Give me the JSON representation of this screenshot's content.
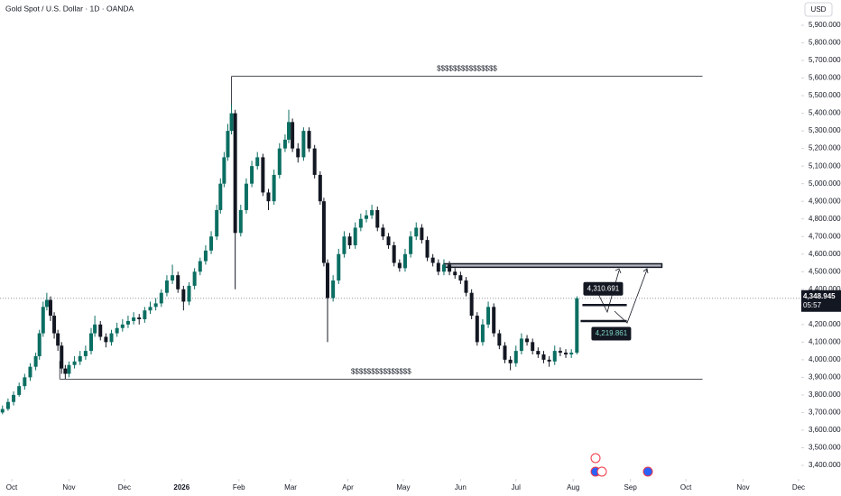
{
  "chart_data": {
    "type": "candlestick",
    "title": "Gold Spot / U.S. Dollar · 1D · OANDA",
    "currency": "USD",
    "up_color": "#0b6e62",
    "down_color": "#131722",
    "xlim": [
      -6.35,
      427.5
    ],
    "ylim": [
      3338.5,
      6043.4
    ],
    "xticks": [
      {
        "value": 0,
        "label": "Oct"
      },
      {
        "value": 31,
        "label": "Nov"
      },
      {
        "value": 61,
        "label": "Dec"
      },
      {
        "value": 92,
        "label": "2026"
      },
      {
        "value": 123,
        "label": "Feb"
      },
      {
        "value": 151,
        "label": "Mar"
      },
      {
        "value": 182,
        "label": "Apr"
      },
      {
        "value": 212,
        "label": "May"
      },
      {
        "value": 243,
        "label": "Jun"
      },
      {
        "value": 273,
        "label": "Jul"
      },
      {
        "value": 304,
        "label": "Aug"
      },
      {
        "value": 335,
        "label": "Sep"
      },
      {
        "value": 365,
        "label": "Oct"
      },
      {
        "value": 396,
        "label": "Nov"
      },
      {
        "value": 426,
        "label": "Dec"
      }
    ],
    "yticks": [
      {
        "value": 5900,
        "label": "5,900.000"
      },
      {
        "value": 5800,
        "label": "5,800.000"
      },
      {
        "value": 5700,
        "label": "5,700.000"
      },
      {
        "value": 5600,
        "label": "5,600.000"
      },
      {
        "value": 5500,
        "label": "5,500.000"
      },
      {
        "value": 5400,
        "label": "5,400.000"
      },
      {
        "value": 5300,
        "label": "5,300.000"
      },
      {
        "value": 5200,
        "label": "5,200.000"
      },
      {
        "value": 5100,
        "label": "5,100.000"
      },
      {
        "value": 5000,
        "label": "5,000.000"
      },
      {
        "value": 4900,
        "label": "4,900.000"
      },
      {
        "value": 4800,
        "label": "4,800.000"
      },
      {
        "value": 4700,
        "label": "4,700.000"
      },
      {
        "value": 4600,
        "label": "4,600.000"
      },
      {
        "value": 4500,
        "label": "4,500.000"
      },
      {
        "value": 4400,
        "label": "4,400.000"
      },
      {
        "value": 4200,
        "label": "4,200.000"
      },
      {
        "value": 4100,
        "label": "4,100.000"
      },
      {
        "value": 4000,
        "label": "4,000.000"
      },
      {
        "value": 3900,
        "label": "3,900.000"
      },
      {
        "value": 3800,
        "label": "3,800.000"
      },
      {
        "value": 3700,
        "label": "3,700.000"
      },
      {
        "value": 3600,
        "label": "3,600.000"
      },
      {
        "value": 3500,
        "label": "3,500.000"
      },
      {
        "value": 3400,
        "label": "3,400.000"
      }
    ],
    "x": [
      -5,
      -2,
      1,
      4,
      7,
      10,
      13,
      15,
      17,
      19,
      21,
      23,
      25,
      27,
      29,
      31,
      34,
      37,
      40,
      43,
      45,
      48,
      51,
      54,
      57,
      60,
      63,
      66,
      69,
      72,
      75,
      78,
      81,
      84,
      87,
      90,
      93,
      96,
      99,
      102,
      105,
      108,
      111,
      113,
      115,
      117,
      119,
      121,
      124,
      127,
      130,
      133,
      136,
      139,
      142,
      145,
      148,
      150,
      152,
      155,
      158,
      161,
      164,
      167,
      169,
      171,
      174,
      177,
      180,
      183,
      186,
      189,
      192,
      195,
      198,
      201,
      204,
      207,
      210,
      213,
      216,
      219,
      222,
      225,
      228,
      231,
      234,
      237,
      240,
      243,
      246,
      249,
      252,
      255,
      258,
      261,
      264,
      267,
      270,
      273,
      276,
      279,
      282,
      285,
      288,
      291,
      294,
      297,
      300,
      303,
      306
    ],
    "open": [
      3700,
      3720,
      3760,
      3800,
      3850,
      3900,
      3960,
      4020,
      4150,
      4300,
      4340,
      4250,
      4150,
      4080,
      3950,
      3920,
      3970,
      3990,
      4020,
      4050,
      4150,
      4200,
      4130,
      4100,
      4150,
      4180,
      4200,
      4220,
      4240,
      4230,
      4280,
      4300,
      4320,
      4380,
      4450,
      4480,
      4400,
      4330,
      4420,
      4500,
      4560,
      4620,
      4700,
      4850,
      5000,
      5150,
      5300,
      5400,
      4720,
      4850,
      5000,
      5100,
      5150,
      4950,
      4900,
      5050,
      5200,
      5250,
      5350,
      5200,
      5150,
      5300,
      5200,
      5050,
      4900,
      4550,
      4350,
      4450,
      4600,
      4700,
      4650,
      4750,
      4800,
      4820,
      4850,
      4750,
      4700,
      4650,
      4550,
      4520,
      4600,
      4700,
      4750,
      4680,
      4580,
      4550,
      4500,
      4540,
      4500,
      4480,
      4450,
      4380,
      4250,
      4100,
      4200,
      4300,
      4150,
      4080,
      4000,
      3980,
      4050,
      4120,
      4100,
      4050,
      4030,
      4000,
      3990,
      4050,
      4040,
      4030,
      4040
    ],
    "high": [
      3740,
      3780,
      3820,
      3870,
      3920,
      3980,
      4040,
      4170,
      4330,
      4380,
      4360,
      4270,
      4170,
      4100,
      3970,
      3990,
      4020,
      4050,
      4080,
      4180,
      4250,
      4220,
      4150,
      4170,
      4210,
      4230,
      4250,
      4270,
      4260,
      4300,
      4330,
      4350,
      4400,
      4480,
      4540,
      4500,
      4420,
      4440,
      4520,
      4580,
      4650,
      4730,
      4880,
      5030,
      5180,
      5340,
      5450,
      5420,
      4880,
      5030,
      5130,
      5180,
      5170,
      4970,
      5080,
      5230,
      5280,
      5420,
      5370,
      5230,
      5320,
      5320,
      5220,
      5070,
      4920,
      4570,
      4480,
      4630,
      4730,
      4720,
      4780,
      4830,
      4850,
      4880,
      4870,
      4770,
      4720,
      4670,
      4570,
      4630,
      4730,
      4780,
      4770,
      4700,
      4600,
      4570,
      4570,
      4560,
      4520,
      4500,
      4470,
      4400,
      4270,
      4230,
      4330,
      4320,
      4170,
      4100,
      4020,
      4080,
      4150,
      4140,
      4120,
      4070,
      4050,
      4020,
      4080,
      4070,
      4060,
      4060,
      4360
    ],
    "low": [
      3690,
      3710,
      3740,
      3790,
      3830,
      3880,
      3940,
      4000,
      4130,
      4280,
      4220,
      4120,
      4050,
      3920,
      3890,
      3900,
      3950,
      3970,
      4000,
      4030,
      4130,
      4110,
      4070,
      4080,
      4130,
      4160,
      4180,
      4200,
      4200,
      4210,
      4260,
      4280,
      4300,
      4360,
      4430,
      4380,
      4280,
      4310,
      4400,
      4480,
      4540,
      4600,
      4680,
      4830,
      4980,
      5130,
      5280,
      4400,
      4700,
      4830,
      4980,
      5080,
      4930,
      4850,
      4880,
      5030,
      5180,
      5230,
      5180,
      5120,
      5130,
      5180,
      5030,
      4880,
      4530,
      4100,
      4330,
      4430,
      4580,
      4630,
      4630,
      4730,
      4780,
      4800,
      4730,
      4680,
      4630,
      4530,
      4500,
      4500,
      4580,
      4680,
      4660,
      4560,
      4530,
      4480,
      4480,
      4480,
      4460,
      4430,
      4360,
      4230,
      4080,
      4080,
      4180,
      4130,
      4060,
      3980,
      3940,
      3960,
      4030,
      4080,
      4030,
      4010,
      3980,
      3960,
      3970,
      4020,
      4010,
      4010,
      4030
    ],
    "close": [
      3720,
      3760,
      3800,
      3850,
      3900,
      3960,
      4020,
      4150,
      4300,
      4340,
      4250,
      4150,
      4080,
      3950,
      3920,
      3970,
      3990,
      4020,
      4050,
      4150,
      4200,
      4130,
      4100,
      4150,
      4180,
      4200,
      4220,
      4240,
      4230,
      4280,
      4300,
      4320,
      4380,
      4450,
      4480,
      4400,
      4330,
      4420,
      4500,
      4560,
      4620,
      4700,
      4850,
      5000,
      5150,
      5300,
      5400,
      4720,
      4850,
      5000,
      5100,
      5150,
      4950,
      4900,
      5050,
      5200,
      5250,
      5350,
      5200,
      5150,
      5300,
      5200,
      5050,
      4900,
      4550,
      4350,
      4450,
      4600,
      4700,
      4650,
      4750,
      4800,
      4820,
      4850,
      4750,
      4700,
      4650,
      4550,
      4520,
      4600,
      4700,
      4750,
      4680,
      4580,
      4550,
      4500,
      4540,
      4500,
      4480,
      4450,
      4380,
      4250,
      4100,
      4200,
      4300,
      4150,
      4080,
      4000,
      3980,
      4050,
      4120,
      4100,
      4050,
      4030,
      4000,
      3990,
      4050,
      4040,
      4030,
      4040,
      4348.945
    ],
    "last_price": {
      "value": 4348.945,
      "label": "4,348.945"
    },
    "countdown": "05:57",
    "levels": [
      {
        "value": 5610,
        "label": "$$$$$$$$$$$$$$$",
        "x_range": [
          119,
          374
        ]
      },
      {
        "value": 3890,
        "label": "$$$$$$$$$$$$$$$",
        "x_range": [
          26,
          374
        ]
      }
    ],
    "zone": {
      "low": 4525,
      "high": 4545,
      "x_range": [
        234,
        352
      ]
    },
    "markers": [
      {
        "value": 4310.691,
        "label": "4,310.691",
        "x_range": [
          309,
          333
        ]
      },
      {
        "value": 4219.861,
        "label": "4,219.861",
        "x_range": [
          308,
          333
        ]
      }
    ]
  }
}
